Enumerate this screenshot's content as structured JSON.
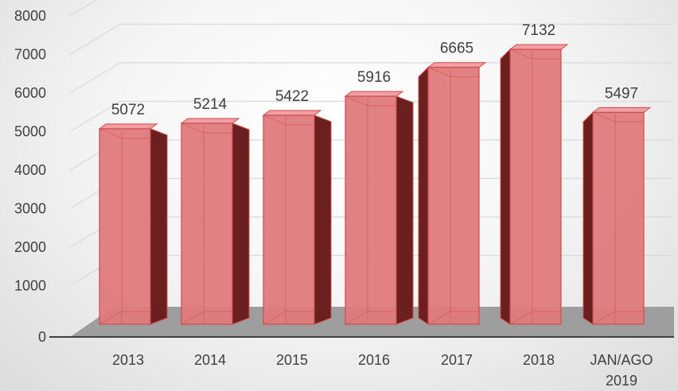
{
  "chart_data": {
    "type": "bar",
    "title": "",
    "xlabel": "",
    "ylabel": "",
    "categories": [
      [
        "2013"
      ],
      [
        "2014"
      ],
      [
        "2015"
      ],
      [
        "2016"
      ],
      [
        "2017"
      ],
      [
        "2018"
      ],
      [
        "JAN/AGO",
        "2019"
      ]
    ],
    "values": [
      5072,
      5214,
      5422,
      5916,
      6665,
      7132,
      5497
    ],
    "data_labels": [
      "5072",
      "5214",
      "5422",
      "5916",
      "6665",
      "7132",
      "5497"
    ],
    "ylim": [
      0,
      8000
    ],
    "yticks": [
      "0",
      "1000",
      "2000",
      "3000",
      "4000",
      "5000",
      "6000",
      "7000",
      "8000"
    ],
    "grid": true,
    "legend": "none",
    "style": "3d-column",
    "colors": {
      "bar_front": "#e07a7c",
      "bar_stroke": "#cf4a4c",
      "bar_side": "#6b1f1f",
      "bar_top": "#f0a0a2",
      "floor": "#9e9e9e",
      "axis": "#404040",
      "grid": "#d9d9d9"
    }
  }
}
